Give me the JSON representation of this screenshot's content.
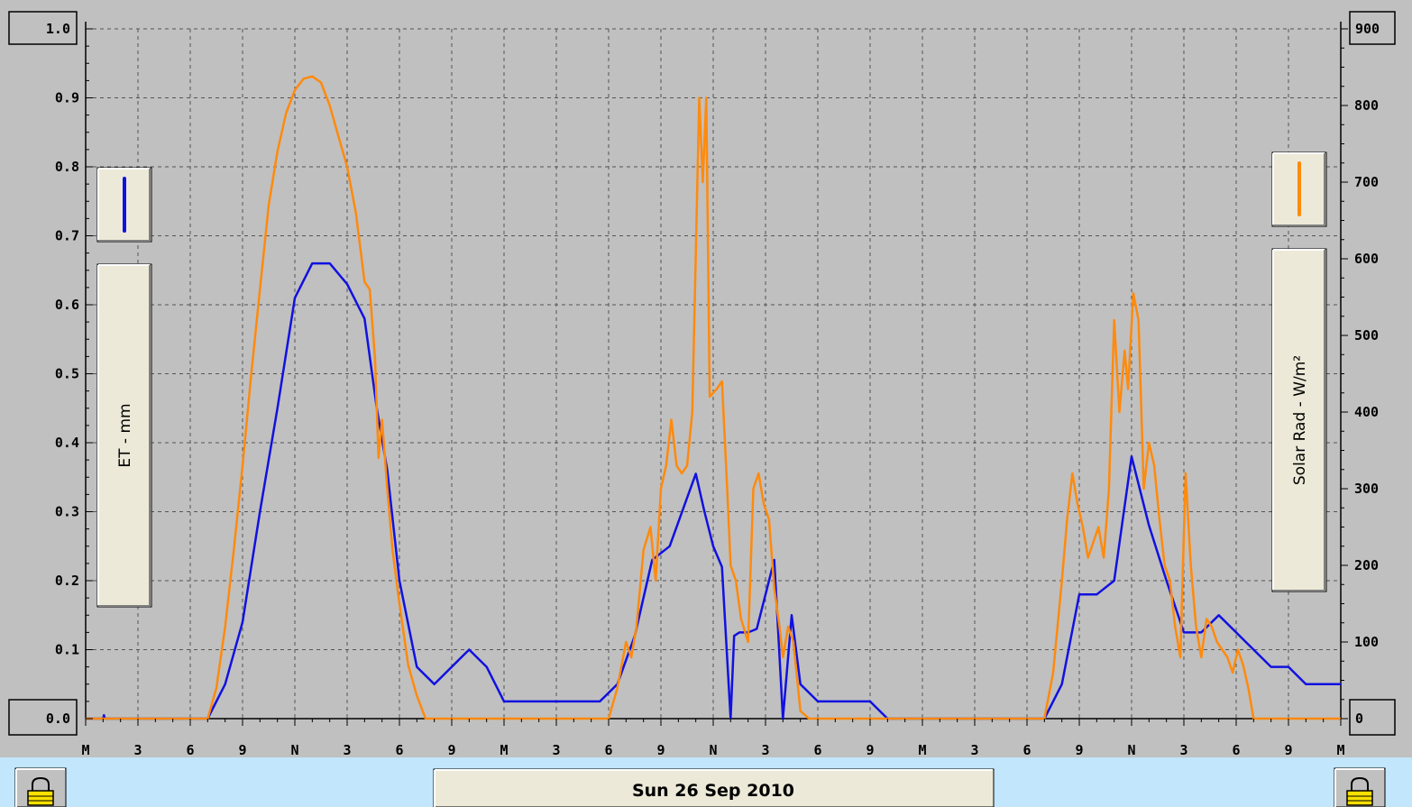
{
  "chart_data": {
    "type": "line",
    "date_label": "Sun 26 Sep 2010",
    "x_ticks": [
      "M",
      "3",
      "6",
      "9",
      "N",
      "3",
      "6",
      "9",
      "M",
      "3",
      "6",
      "9",
      "N",
      "3",
      "6",
      "9",
      "M",
      "3",
      "6",
      "9",
      "N",
      "3",
      "6",
      "9",
      "M"
    ],
    "x_range_hours": [
      0,
      72
    ],
    "left_axis": {
      "label": "ET - mm",
      "ylim": [
        0,
        1
      ],
      "ticks": [
        "0.0",
        "0.1",
        "0.2",
        "0.3",
        "0.4",
        "0.5",
        "0.6",
        "0.7",
        "0.8",
        "0.9",
        "1.0"
      ],
      "color": "#1111e0"
    },
    "right_axis": {
      "label": "Solar Rad - W/m²",
      "ylim": [
        0,
        900
      ],
      "ticks": [
        "0",
        "100",
        "200",
        "300",
        "400",
        "500",
        "600",
        "700",
        "800",
        "900"
      ],
      "color": "#ff8a0d"
    },
    "grid": true,
    "series": [
      {
        "axis": "left",
        "color": "#1111e0",
        "points": [
          [
            0,
            0
          ],
          [
            1,
            0
          ],
          [
            1.05,
            0.005
          ],
          [
            1.1,
            0
          ],
          [
            7,
            0
          ],
          [
            8,
            0.05
          ],
          [
            9,
            0.14
          ],
          [
            10,
            0.3
          ],
          [
            11,
            0.45
          ],
          [
            12,
            0.61
          ],
          [
            13,
            0.66
          ],
          [
            14,
            0.66
          ],
          [
            15,
            0.63
          ],
          [
            16,
            0.58
          ],
          [
            16.7,
            0.45
          ],
          [
            17.3,
            0.36
          ],
          [
            18,
            0.2
          ],
          [
            19,
            0.075
          ],
          [
            20,
            0.05
          ],
          [
            21,
            0.075
          ],
          [
            22,
            0.1
          ],
          [
            23,
            0.075
          ],
          [
            24,
            0.025
          ],
          [
            29.5,
            0.025
          ],
          [
            30.5,
            0.05
          ],
          [
            31.5,
            0.12
          ],
          [
            32.5,
            0.23
          ],
          [
            33.5,
            0.25
          ],
          [
            34.5,
            0.32
          ],
          [
            35,
            0.355
          ],
          [
            35.5,
            0.3
          ],
          [
            36,
            0.25
          ],
          [
            36.5,
            0.22
          ],
          [
            37,
            0
          ],
          [
            37.2,
            0.12
          ],
          [
            37.5,
            0.125
          ],
          [
            38,
            0.125
          ],
          [
            38.5,
            0.13
          ],
          [
            39,
            0.18
          ],
          [
            39.5,
            0.23
          ],
          [
            40,
            0
          ],
          [
            40.5,
            0.15
          ],
          [
            41,
            0.05
          ],
          [
            42,
            0.025
          ],
          [
            45,
            0.025
          ],
          [
            46,
            0
          ],
          [
            55,
            0
          ],
          [
            56,
            0.05
          ],
          [
            57,
            0.18
          ],
          [
            58,
            0.18
          ],
          [
            59,
            0.2
          ],
          [
            60,
            0.38
          ],
          [
            61,
            0.28
          ],
          [
            62,
            0.2
          ],
          [
            63,
            0.125
          ],
          [
            64,
            0.125
          ],
          [
            65,
            0.15
          ],
          [
            66,
            0.125
          ],
          [
            67,
            0.1
          ],
          [
            68,
            0.075
          ],
          [
            69,
            0.075
          ],
          [
            70,
            0.05
          ],
          [
            72,
            0.05
          ]
        ]
      },
      {
        "axis": "right",
        "color": "#ff8a0d",
        "points": [
          [
            0,
            0
          ],
          [
            7,
            0
          ],
          [
            7.5,
            40
          ],
          [
            8,
            120
          ],
          [
            8.5,
            220
          ],
          [
            9,
            330
          ],
          [
            9.5,
            450
          ],
          [
            10,
            560
          ],
          [
            10.5,
            670
          ],
          [
            11,
            740
          ],
          [
            11.5,
            790
          ],
          [
            12,
            820
          ],
          [
            12.5,
            835
          ],
          [
            13,
            838
          ],
          [
            13.5,
            830
          ],
          [
            14,
            800
          ],
          [
            14.5,
            760
          ],
          [
            15,
            720
          ],
          [
            15.5,
            660
          ],
          [
            16,
            570
          ],
          [
            16.3,
            560
          ],
          [
            16.6,
            470
          ],
          [
            16.8,
            340
          ],
          [
            17,
            390
          ],
          [
            17.3,
            300
          ],
          [
            17.6,
            220
          ],
          [
            18,
            150
          ],
          [
            18.5,
            70
          ],
          [
            19,
            30
          ],
          [
            19.5,
            0
          ],
          [
            30,
            0
          ],
          [
            30.5,
            40
          ],
          [
            31,
            100
          ],
          [
            31.3,
            80
          ],
          [
            31.6,
            120
          ],
          [
            32,
            220
          ],
          [
            32.4,
            250
          ],
          [
            32.7,
            180
          ],
          [
            33,
            300
          ],
          [
            33.3,
            330
          ],
          [
            33.6,
            390
          ],
          [
            33.9,
            330
          ],
          [
            34.2,
            320
          ],
          [
            34.5,
            330
          ],
          [
            34.8,
            400
          ],
          [
            35.2,
            810
          ],
          [
            35.4,
            700
          ],
          [
            35.6,
            810
          ],
          [
            35.8,
            420
          ],
          [
            36.2,
            430
          ],
          [
            36.5,
            440
          ],
          [
            36.8,
            300
          ],
          [
            37,
            200
          ],
          [
            37.3,
            180
          ],
          [
            37.6,
            130
          ],
          [
            38,
            100
          ],
          [
            38.3,
            300
          ],
          [
            38.6,
            320
          ],
          [
            38.9,
            280
          ],
          [
            39.2,
            260
          ],
          [
            39.5,
            170
          ],
          [
            39.8,
            120
          ],
          [
            40,
            80
          ],
          [
            40.3,
            120
          ],
          [
            40.6,
            100
          ],
          [
            41,
            10
          ],
          [
            41.5,
            0
          ],
          [
            55,
            0
          ],
          [
            55.5,
            60
          ],
          [
            56,
            180
          ],
          [
            56.3,
            260
          ],
          [
            56.6,
            320
          ],
          [
            56.9,
            280
          ],
          [
            57.2,
            250
          ],
          [
            57.5,
            210
          ],
          [
            57.8,
            230
          ],
          [
            58.1,
            250
          ],
          [
            58.4,
            210
          ],
          [
            58.7,
            300
          ],
          [
            59,
            520
          ],
          [
            59.3,
            400
          ],
          [
            59.6,
            480
          ],
          [
            59.8,
            430
          ],
          [
            60.1,
            555
          ],
          [
            60.4,
            520
          ],
          [
            60.7,
            300
          ],
          [
            61,
            360
          ],
          [
            61.3,
            330
          ],
          [
            61.6,
            260
          ],
          [
            61.9,
            200
          ],
          [
            62.2,
            180
          ],
          [
            62.5,
            120
          ],
          [
            62.8,
            80
          ],
          [
            63.1,
            320
          ],
          [
            63.4,
            200
          ],
          [
            63.7,
            120
          ],
          [
            64,
            80
          ],
          [
            64.3,
            130
          ],
          [
            64.6,
            120
          ],
          [
            64.9,
            100
          ],
          [
            65.2,
            90
          ],
          [
            65.5,
            80
          ],
          [
            65.8,
            60
          ],
          [
            66.1,
            90
          ],
          [
            66.4,
            70
          ],
          [
            66.7,
            40
          ],
          [
            67,
            0
          ],
          [
            72,
            0
          ]
        ]
      }
    ]
  }
}
